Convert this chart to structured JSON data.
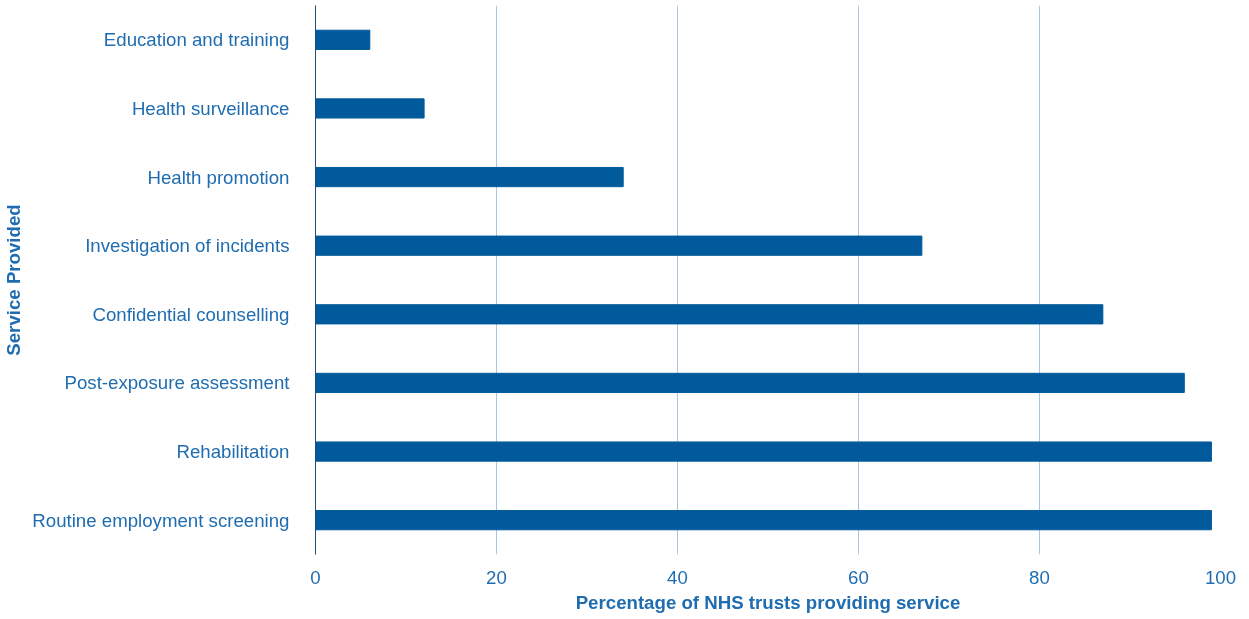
{
  "chart_data": {
    "type": "bar",
    "orientation": "horizontal",
    "xlabel": "Percentage of NHS trusts providing service",
    "ylabel": "Service Provided",
    "categories": [
      "Education and training",
      "Health surveillance",
      "Health promotion",
      "Investigation of incidents",
      "Confidential counselling",
      "Post-exposure assessment",
      "Rehabilitation",
      "Routine employment screening"
    ],
    "values": [
      6,
      12,
      34,
      67,
      87,
      96,
      99,
      99
    ],
    "color": "#005a9c",
    "xlim": [
      0,
      100
    ],
    "xticks": [
      0,
      20,
      40,
      60,
      80,
      100
    ],
    "grid": "x"
  }
}
